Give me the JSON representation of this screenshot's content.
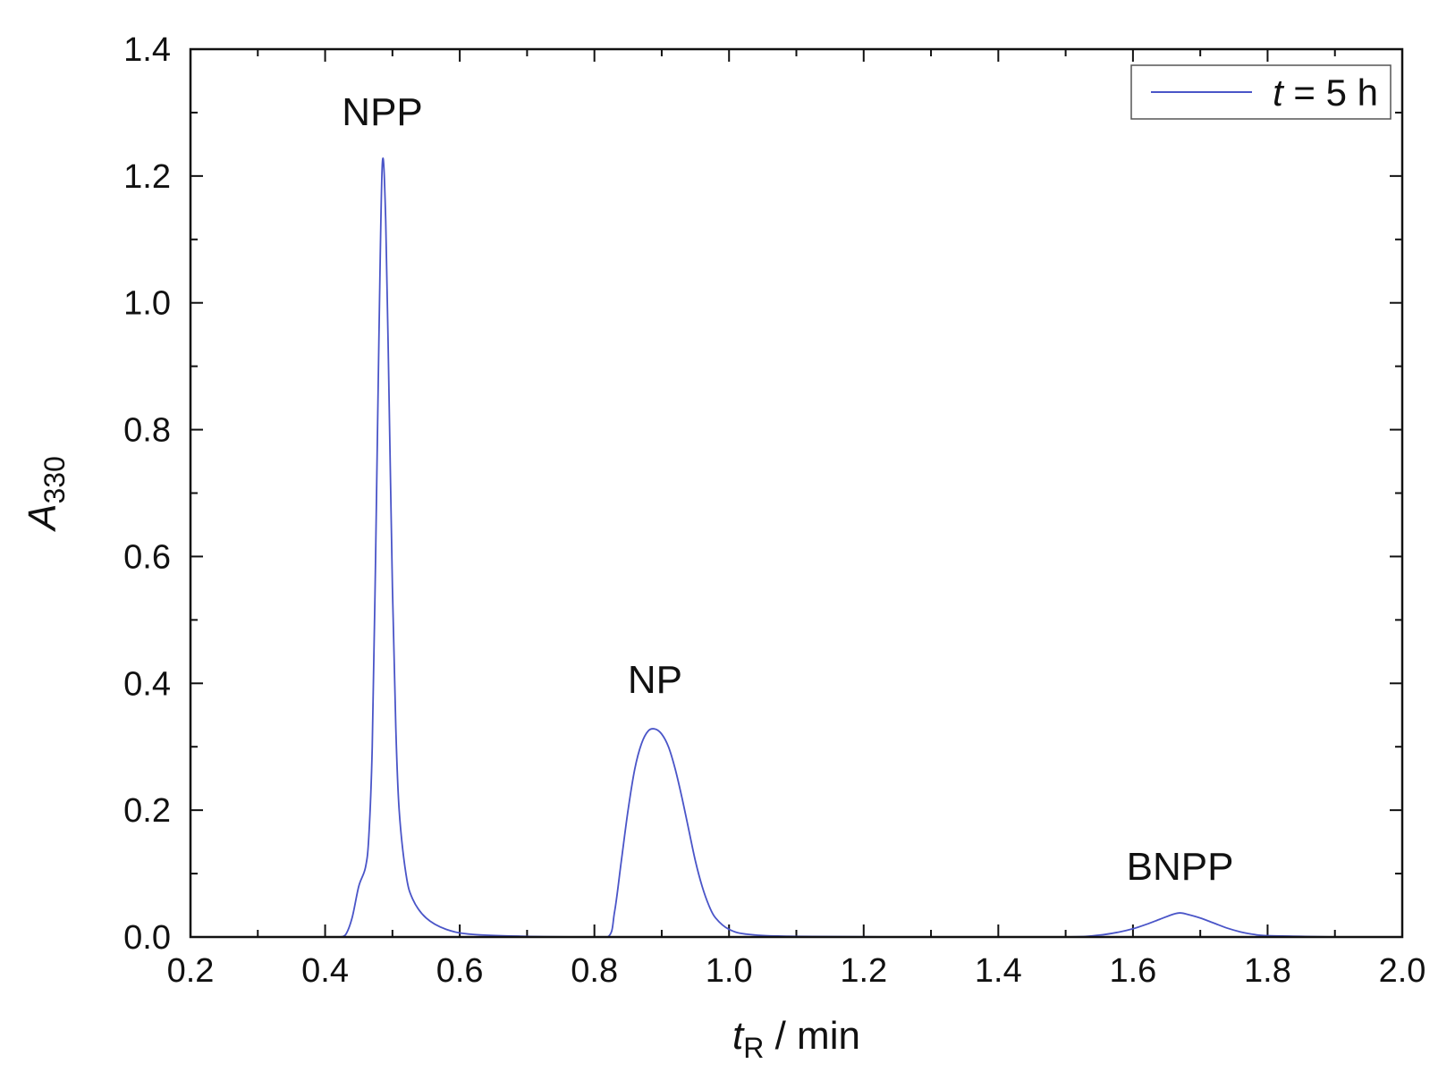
{
  "chart_data": {
    "type": "line",
    "xlabel": {
      "main": "t",
      "sub": "R",
      "rest": " / min"
    },
    "ylabel": {
      "main": "A",
      "sub": "330"
    },
    "xlim": [
      0.2,
      2.0
    ],
    "ylim": [
      0.0,
      1.4
    ],
    "x_ticks": [
      "0.2",
      "0.4",
      "0.6",
      "0.8",
      "1.0",
      "1.2",
      "1.4",
      "1.6",
      "1.8",
      "2.0"
    ],
    "y_ticks": [
      "0.0",
      "0.2",
      "0.4",
      "0.6",
      "0.8",
      "1.0",
      "1.2",
      "1.4"
    ],
    "grid": false,
    "legend_position": "top-right",
    "line_color": "#4a55c8",
    "series": [
      {
        "name": {
          "main": "t",
          "rest": " = 5 h"
        },
        "x": [
          0.2,
          0.3,
          0.4,
          0.42,
          0.43,
          0.44,
          0.45,
          0.46,
          0.465,
          0.47,
          0.475,
          0.48,
          0.485,
          0.49,
          0.495,
          0.5,
          0.505,
          0.51,
          0.52,
          0.53,
          0.55,
          0.58,
          0.62,
          0.7,
          0.78,
          0.82,
          0.83,
          0.84,
          0.85,
          0.86,
          0.87,
          0.88,
          0.89,
          0.9,
          0.91,
          0.92,
          0.93,
          0.94,
          0.95,
          0.96,
          0.97,
          0.98,
          1.0,
          1.03,
          1.1,
          1.3,
          1.5,
          1.55,
          1.58,
          1.6,
          1.62,
          1.64,
          1.66,
          1.67,
          1.68,
          1.7,
          1.72,
          1.74,
          1.76,
          1.78,
          1.8,
          1.85,
          1.9,
          2.0
        ],
        "y": [
          0.0,
          0.0,
          0.0,
          0.0,
          0.003,
          0.03,
          0.08,
          0.11,
          0.16,
          0.3,
          0.6,
          0.95,
          1.22,
          1.13,
          0.85,
          0.55,
          0.33,
          0.2,
          0.1,
          0.06,
          0.03,
          0.012,
          0.004,
          0.001,
          0.0,
          0.0,
          0.04,
          0.12,
          0.2,
          0.265,
          0.305,
          0.325,
          0.328,
          0.32,
          0.3,
          0.265,
          0.22,
          0.17,
          0.12,
          0.08,
          0.05,
          0.03,
          0.012,
          0.004,
          0.001,
          0.0,
          0.0,
          0.003,
          0.008,
          0.013,
          0.02,
          0.028,
          0.036,
          0.038,
          0.036,
          0.03,
          0.022,
          0.014,
          0.008,
          0.004,
          0.002,
          0.001,
          0.0,
          0.0
        ]
      }
    ],
    "annotations": [
      {
        "text": "NPP",
        "x": 0.485,
        "y": 1.28
      },
      {
        "text": "NP",
        "x": 0.89,
        "y": 0.385
      },
      {
        "text": "BNPP",
        "x": 1.67,
        "y": 0.09
      }
    ]
  }
}
